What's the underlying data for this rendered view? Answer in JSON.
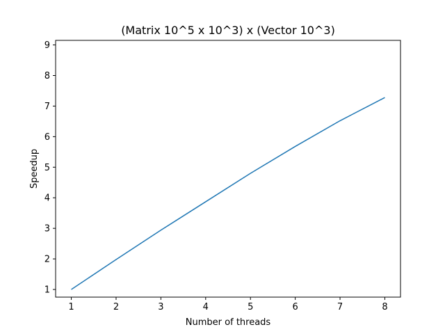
{
  "chart_data": {
    "type": "line",
    "title": "(Matrix 10^5 x 10^3) x (Vector 10^3)",
    "xlabel": "Number of threads",
    "ylabel": "Speedup",
    "x": [
      1,
      2,
      3,
      4,
      5,
      6,
      7,
      8
    ],
    "x_ticks": [
      "1",
      "2",
      "3",
      "4",
      "5",
      "6",
      "7",
      "8"
    ],
    "y_ticks": [
      "1",
      "2",
      "3",
      "4",
      "5",
      "6",
      "7",
      "8",
      "9"
    ],
    "xlim": [
      0.65,
      8.35
    ],
    "ylim": [
      0.75,
      9.15
    ],
    "grid": false,
    "series": [
      {
        "values": [
          1.0,
          1.98,
          2.94,
          3.87,
          4.8,
          5.68,
          6.52,
          7.28
        ],
        "color": "#1f77b4"
      }
    ]
  }
}
